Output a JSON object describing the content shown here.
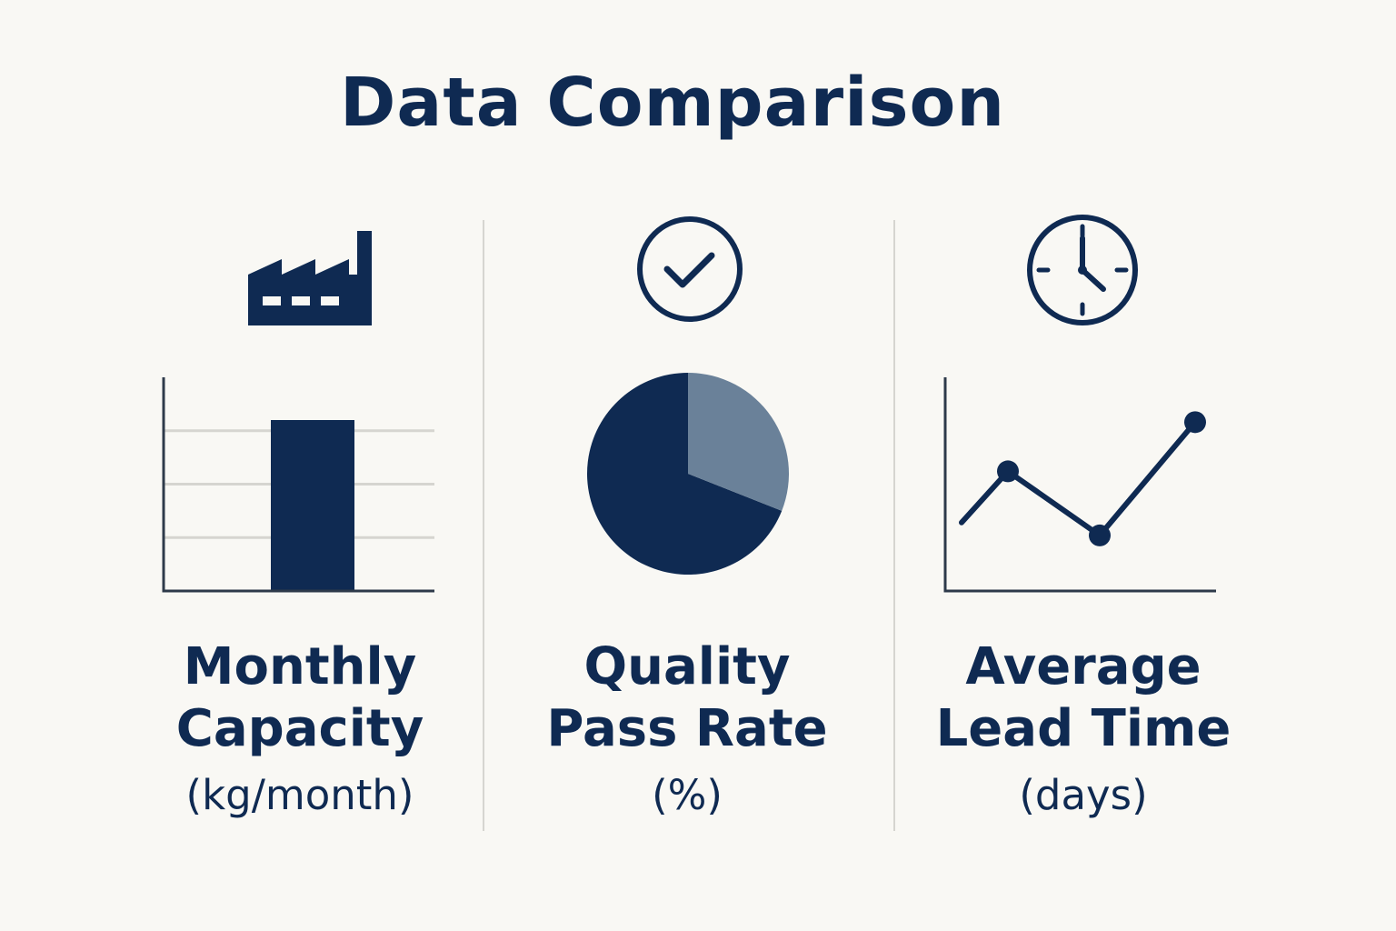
{
  "title": "Data Comparison",
  "colors": {
    "primary": "#0f2a52",
    "secondary": "#6a8199",
    "grid": "#d6d5d0",
    "background": "#f9f8f4"
  },
  "panels": [
    {
      "icon": "factory-icon",
      "line1": "Monthly",
      "line2": "Capacity",
      "unit": "(kg/month)"
    },
    {
      "icon": "check-circle-icon",
      "line1": "Quality",
      "line2": "Pass Rate",
      "unit": "(%)"
    },
    {
      "icon": "clock-icon",
      "line1": "Average",
      "line2": "Lead Time",
      "unit": "(days)"
    }
  ],
  "chart_data": [
    {
      "type": "bar",
      "categories": [
        ""
      ],
      "values": [
        80
      ],
      "ylim": [
        0,
        100
      ],
      "grid": true
    },
    {
      "type": "pie",
      "values": [
        69,
        31
      ],
      "colors": [
        "#0f2a52",
        "#6a8199"
      ]
    },
    {
      "type": "line",
      "x": [
        1,
        2,
        3,
        4
      ],
      "values": [
        3.2,
        5.6,
        2.6,
        7.9
      ],
      "markers": [
        false,
        true,
        true,
        true
      ],
      "ylim": [
        0,
        10
      ]
    }
  ]
}
